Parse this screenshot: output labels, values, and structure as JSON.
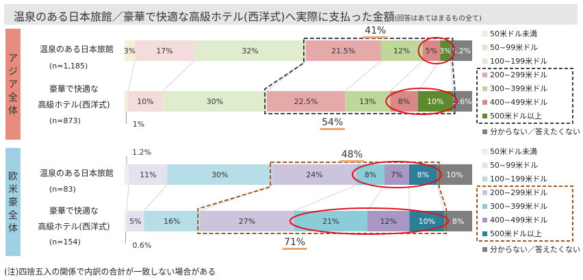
{
  "title": "温泉のある日本旅館／豪華で快適な高級ホテル(西洋式)へ実際に支払った金額",
  "title_note": "(回答はあてはまるもの全て)",
  "footnote": "(注)四捨五入の関係で内訳の合計が一致しない場合がある",
  "chart_data": [
    {
      "type": "bar",
      "stacked": true,
      "orientation": "horizontal",
      "region": "アジア全体",
      "categories": [
        "温泉のある日本旅館",
        "豪華で快適な高級ホテル(西洋式)"
      ],
      "sample_sizes": [
        "(n=1,185)",
        "(n=873)"
      ],
      "series": [
        {
          "name": "50米ドル未満",
          "values": [
            3,
            1
          ],
          "labels": [
            "3%",
            "1%"
          ],
          "color": "#f3efd9"
        },
        {
          "name": "50~99米ドル",
          "values": [
            17,
            10
          ],
          "labels": [
            "17%",
            "10%"
          ],
          "color": "#f5dcdc"
        },
        {
          "name": "100~199米ドル",
          "values": [
            32,
            30
          ],
          "labels": [
            "32%",
            "30%"
          ],
          "color": "#dfeccd"
        },
        {
          "name": "200~299米ドル",
          "values": [
            21.5,
            22.5
          ],
          "labels": [
            "21.5%",
            "22.5%"
          ],
          "color": "#e6a9a9"
        },
        {
          "name": "300~399米ドル",
          "values": [
            12,
            13
          ],
          "labels": [
            "12%",
            "13%"
          ],
          "color": "#bfd79b"
        },
        {
          "name": "400~499米ドル",
          "values": [
            5,
            8
          ],
          "labels": [
            "5%",
            "8%"
          ],
          "color": "#d98888"
        },
        {
          "name": "500米ドル以上",
          "values": [
            3,
            10
          ],
          "labels": [
            "3%",
            "10%"
          ],
          "color": "#5d8a2f"
        },
        {
          "name": "分からない／答えたくない",
          "values": [
            6.2,
            5.6
          ],
          "labels": [
            "6.2%",
            "5.6%"
          ],
          "color": "#7f7f7f"
        }
      ],
      "group_totals": [
        "41%",
        "54%"
      ]
    },
    {
      "type": "bar",
      "stacked": true,
      "orientation": "horizontal",
      "region": "欧米豪全体",
      "categories": [
        "温泉のある日本旅館",
        "豪華で快適な高級ホテル(西洋式)"
      ],
      "sample_sizes": [
        "(n=83)",
        "(n=154)"
      ],
      "series": [
        {
          "name": "50米ドル未満",
          "values": [
            1.2,
            0.6
          ],
          "labels": [
            "1.2%",
            "0.6%"
          ],
          "color": "#eaf1f5"
        },
        {
          "name": "50~99米ドル",
          "values": [
            11,
            5
          ],
          "labels": [
            "11%",
            "5%"
          ],
          "color": "#e4e2ee"
        },
        {
          "name": "100~199米ドル",
          "values": [
            30,
            16
          ],
          "labels": [
            "30%",
            "16%"
          ],
          "color": "#b7dde7"
        },
        {
          "name": "200~299米ドル",
          "values": [
            24,
            27
          ],
          "labels": [
            "24%",
            "27%"
          ],
          "color": "#ccc3dd"
        },
        {
          "name": "300~399米ドル",
          "values": [
            8,
            21
          ],
          "labels": [
            "8%",
            "21%"
          ],
          "color": "#8ccbd8"
        },
        {
          "name": "400~499米ドル",
          "values": [
            7,
            12
          ],
          "labels": [
            "7%",
            "12%"
          ],
          "color": "#a896c4"
        },
        {
          "name": "500米ドル以上",
          "values": [
            8,
            10
          ],
          "labels": [
            "8%",
            "10%"
          ],
          "color": "#2e7e97"
        },
        {
          "name": "分からない／答えたくない",
          "values": [
            10,
            8
          ],
          "labels": [
            "10%",
            "8%"
          ],
          "color": "#7f7f7f"
        }
      ],
      "group_totals": [
        "48%",
        "71%"
      ]
    }
  ],
  "colors": {
    "asia_region": "#e78c7f",
    "western_region": "#9fd0e4",
    "asia_dash": "#3d3d5c",
    "western_dash": "#a0581a",
    "highlight_circle": "#e0101a",
    "total_underline": "#f2a36b"
  }
}
